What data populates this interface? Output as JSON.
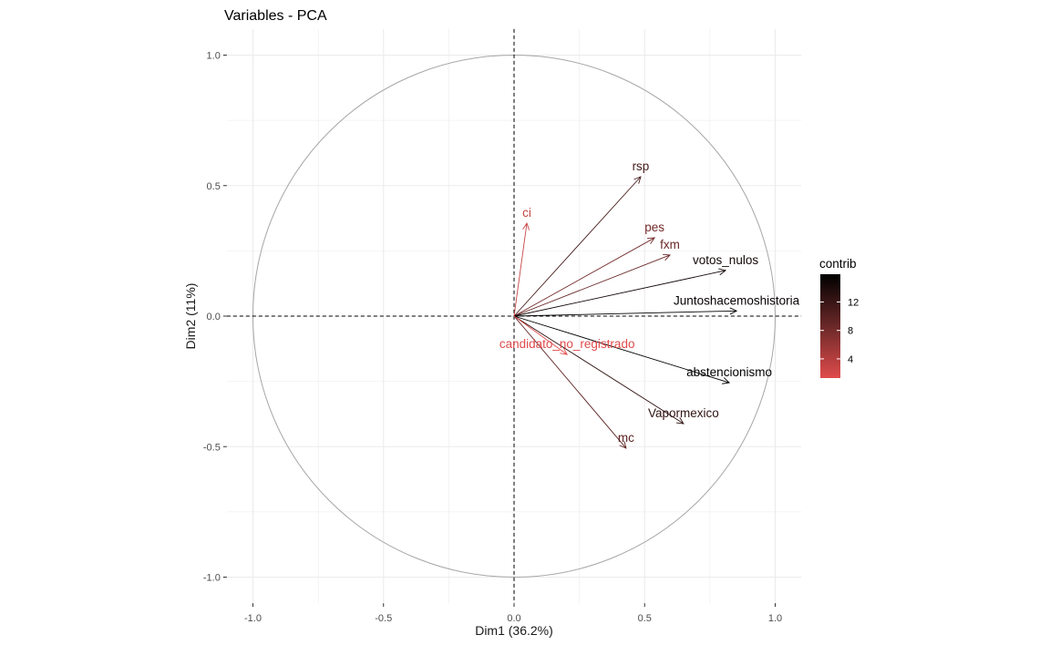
{
  "chart_data": {
    "type": "scatter",
    "title": "Variables - PCA",
    "xlabel": "Dim1 (36.2%)",
    "ylabel": "Dim2 (11%)",
    "xlim": [
      -1.1,
      1.1
    ],
    "ylim": [
      -1.1,
      1.1
    ],
    "x_ticks": [
      -1.0,
      -0.5,
      0.0,
      0.5,
      1.0
    ],
    "x_tick_labels": [
      "-1.0",
      "-0.5",
      "0.0",
      "0.5",
      "1.0"
    ],
    "y_ticks": [
      -1.0,
      -0.5,
      0.0,
      0.5,
      1.0
    ],
    "y_tick_labels": [
      "-1.0",
      "-0.5",
      "0.0",
      "0.5",
      "1.0"
    ],
    "grid": true,
    "correlation_circle": true,
    "legend": {
      "title": "contrib",
      "placement": "right",
      "ticks": [
        4,
        8,
        12
      ],
      "tick_labels": [
        "4",
        "8",
        "12"
      ],
      "range": [
        1.3,
        15.9
      ],
      "colors": [
        "#E04B4B",
        "#6B2828",
        "#000000"
      ]
    },
    "series": [
      {
        "label": "rsp",
        "x": 0.485,
        "y": 0.534,
        "contrib": 11.1
      },
      {
        "label": "ci",
        "x": 0.049,
        "y": 0.356,
        "contrib": 2.8
      },
      {
        "label": "pes",
        "x": 0.538,
        "y": 0.3,
        "contrib": 8.1
      },
      {
        "label": "fxm",
        "x": 0.597,
        "y": 0.234,
        "contrib": 8.8
      },
      {
        "label": "votos_nulos",
        "x": 0.81,
        "y": 0.175,
        "contrib": 14.6
      },
      {
        "label": "Juntoshacemoshistoria",
        "x": 0.852,
        "y": 0.02,
        "contrib": 15.5
      },
      {
        "label": "abstencionismo",
        "x": 0.824,
        "y": -0.255,
        "contrib": 15.9
      },
      {
        "label": "Vapormexico",
        "x": 0.649,
        "y": -0.412,
        "contrib": 12.6
      },
      {
        "label": "mc",
        "x": 0.429,
        "y": -0.506,
        "contrib": 9.4
      },
      {
        "label": "candidato_no_registrado",
        "x": 0.203,
        "y": -0.147,
        "contrib": 1.3
      }
    ]
  }
}
